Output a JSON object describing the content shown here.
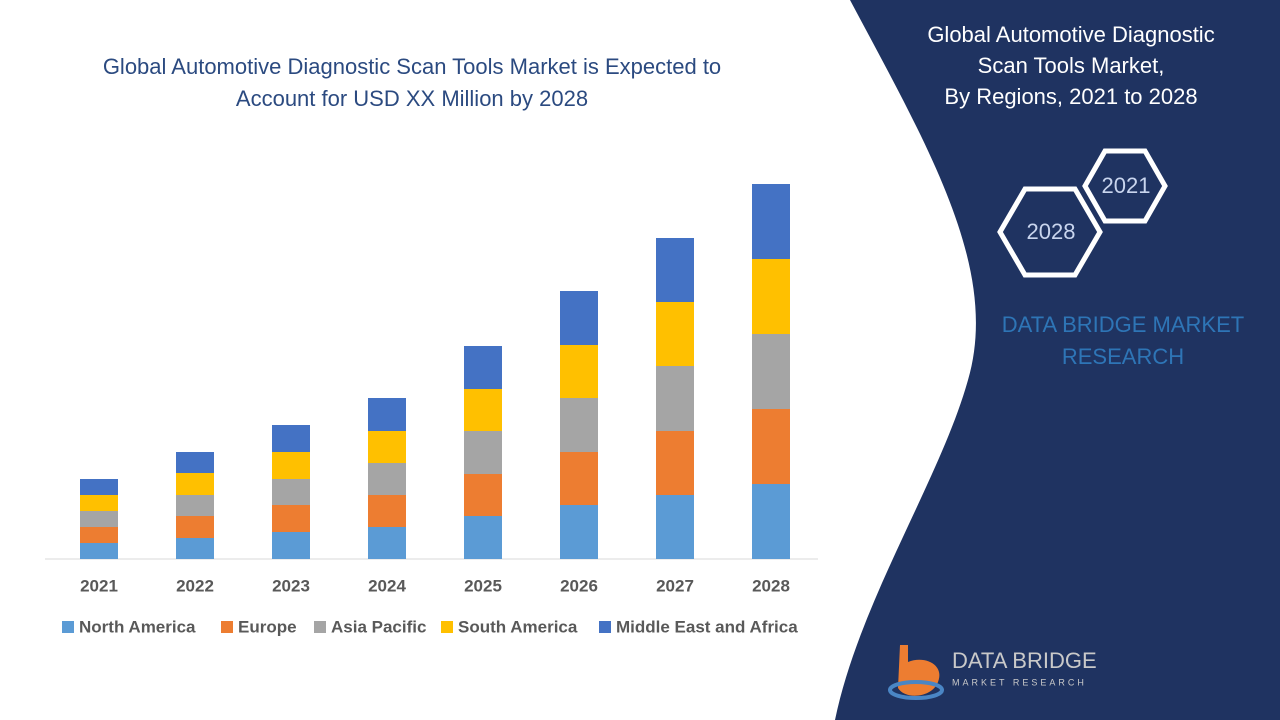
{
  "chart_data": {
    "type": "stacked_bar",
    "title": [
      "Global Automotive Diagnostic Scan Tools Market is Expected to",
      "Account for USD XX Million  by 2028"
    ],
    "categories": [
      "2021",
      "2022",
      "2023",
      "2024",
      "2025",
      "2026",
      "2027",
      "2028"
    ],
    "series": [
      {
        "name": "North America",
        "color": "#5b9bd5",
        "values": [
          16,
          21,
          27,
          32,
          43,
          54,
          64,
          75
        ]
      },
      {
        "name": "Europe",
        "color": "#ed7d31",
        "values": [
          16,
          22,
          27,
          32,
          42,
          53,
          64,
          75
        ]
      },
      {
        "name": "Asia Pacific",
        "color": "#a5a5a5",
        "values": [
          16,
          21,
          26,
          32,
          43,
          54,
          65,
          75
        ]
      },
      {
        "name": "South America",
        "color": "#ffc000",
        "values": [
          16,
          22,
          27,
          32,
          42,
          53,
          64,
          75
        ]
      },
      {
        "name": "Middle East and Africa",
        "color": "#4472c4",
        "values": [
          16,
          21,
          27,
          33,
          43,
          54,
          64,
          75
        ]
      }
    ],
    "ylim": [
      0,
      400
    ]
  },
  "sidebar": {
    "title": [
      "Global Automotive Diagnostic",
      "Scan Tools Market,",
      "By Regions, 2021 to 2028"
    ],
    "hex_start": "2021",
    "hex_end": "2028",
    "brand": [
      "DATA BRIDGE MARKET",
      "RESEARCH"
    ]
  },
  "logo": {
    "name": "DATA BRIDGE",
    "tagline": "MARKET RESEARCH"
  }
}
